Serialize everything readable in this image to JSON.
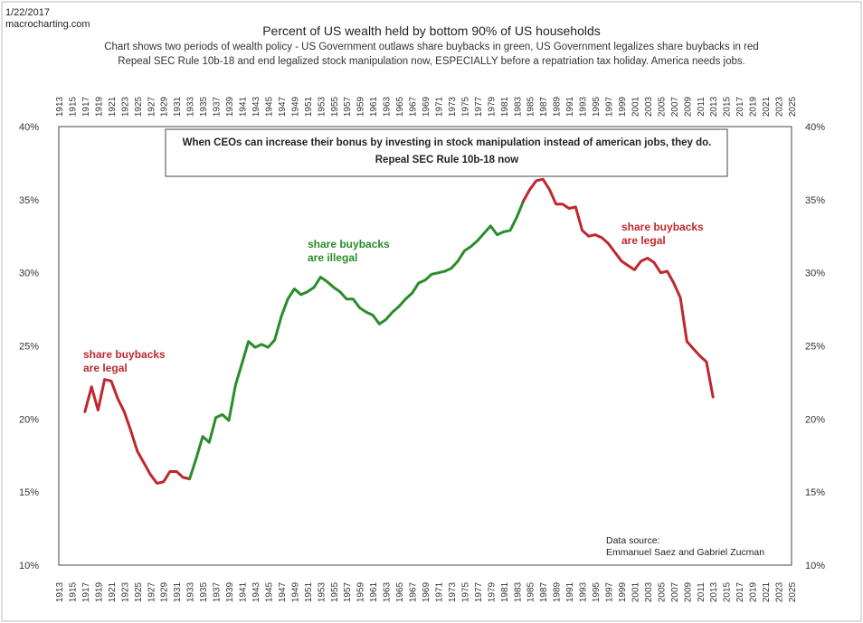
{
  "header": {
    "date": "1/22/2017",
    "site": "macrocharting.com",
    "title": "Percent of US wealth held by bottom 90% of US households",
    "subtitle_line1": "Chart shows two periods of wealth policy - US Government outlaws share buybacks in green,  US Government legalizes share buybacks in red",
    "subtitle_line2": "Repeal SEC Rule 10b-18 and end legalized stock manipulation now, ESPECIALLY before a repatriation tax holiday. America needs jobs."
  },
  "colors": {
    "legal": "#c0272d",
    "illegal": "#2a8c2a",
    "grid_text": "#333333",
    "frame": "#444444"
  },
  "chart_data": {
    "type": "line",
    "title": "Percent of US wealth held by bottom 90% of US households",
    "xlabel": "",
    "ylabel": "",
    "xlim": [
      1913,
      2025
    ],
    "ylim": [
      10,
      40
    ],
    "x_ticks": [
      "1913",
      "1915",
      "1917",
      "1919",
      "1921",
      "1923",
      "1925",
      "1927",
      "1929",
      "1931",
      "1933",
      "1935",
      "1937",
      "1939",
      "1941",
      "1943",
      "1945",
      "1947",
      "1949",
      "1951",
      "1953",
      "1955",
      "1957",
      "1959",
      "1961",
      "1963",
      "1965",
      "1967",
      "1969",
      "1971",
      "1973",
      "1975",
      "1977",
      "1979",
      "1981",
      "1983",
      "1985",
      "1987",
      "1989",
      "1991",
      "1993",
      "1995",
      "1997",
      "1999",
      "2001",
      "2003",
      "2005",
      "2007",
      "2009",
      "2011",
      "2013",
      "2015",
      "2017",
      "2019",
      "2021",
      "2023",
      "2025"
    ],
    "y_ticks": [
      "10%",
      "15%",
      "20%",
      "25%",
      "30%",
      "35%",
      "40%"
    ],
    "y_tick_values": [
      10,
      15,
      20,
      25,
      30,
      35,
      40
    ],
    "series": [
      {
        "segment": "legal",
        "x": [
          1917,
          1918,
          1919,
          1920,
          1921,
          1922,
          1923,
          1924,
          1925,
          1926,
          1927,
          1928,
          1929,
          1930,
          1931,
          1932,
          1933
        ],
        "y": [
          20.5,
          22.2,
          20.6,
          22.7,
          22.6,
          21.4,
          20.5,
          19.2,
          17.8,
          17.0,
          16.2,
          15.6,
          15.7,
          16.4,
          16.4,
          16.0,
          15.9
        ]
      },
      {
        "segment": "illegal",
        "x": [
          1933,
          1934,
          1935,
          1936,
          1937,
          1938,
          1939,
          1940,
          1941,
          1942,
          1943,
          1944,
          1945,
          1946,
          1947,
          1948,
          1949,
          1950,
          1951,
          1952,
          1953,
          1954,
          1955,
          1956,
          1957,
          1958,
          1959,
          1960,
          1961,
          1962,
          1963,
          1964,
          1965,
          1966,
          1967,
          1968,
          1969,
          1970,
          1971,
          1972,
          1973,
          1974,
          1975,
          1976,
          1977,
          1978,
          1979,
          1980,
          1981,
          1982,
          1983,
          1984
        ],
        "y": [
          15.9,
          17.3,
          18.8,
          18.4,
          20.1,
          20.3,
          19.9,
          22.3,
          23.8,
          25.3,
          24.9,
          25.1,
          24.9,
          25.4,
          27.0,
          28.2,
          28.9,
          28.5,
          28.7,
          29.0,
          29.7,
          29.4,
          29.0,
          28.7,
          28.2,
          28.2,
          27.6,
          27.3,
          27.1,
          26.5,
          26.8,
          27.3,
          27.7,
          28.2,
          28.6,
          29.3,
          29.5,
          29.9,
          30.0,
          30.1,
          30.3,
          30.8,
          31.5,
          31.8,
          32.2,
          32.7,
          33.2,
          32.6,
          32.8,
          32.9,
          33.8,
          34.9
        ]
      },
      {
        "segment": "legal",
        "x": [
          1984,
          1985,
          1986,
          1987,
          1988,
          1989,
          1990,
          1991,
          1992,
          1993,
          1994,
          1995,
          1996,
          1997,
          1998,
          1999,
          2000,
          2001,
          2002,
          2003,
          2004,
          2005,
          2006,
          2007,
          2008,
          2009,
          2010,
          2011,
          2012,
          2013
        ],
        "y": [
          34.9,
          35.7,
          36.3,
          36.4,
          35.7,
          34.7,
          34.7,
          34.4,
          34.5,
          32.9,
          32.5,
          32.6,
          32.4,
          32.0,
          31.4,
          30.8,
          30.5,
          30.2,
          30.8,
          31.0,
          30.7,
          30.0,
          30.1,
          29.3,
          28.3,
          25.3,
          24.8,
          24.3,
          23.9,
          21.5
        ]
      }
    ],
    "annotations": {
      "box_line1": "When CEOs can increase their bonus by investing in stock manipulation instead of american jobs, they do.",
      "box_line2": "Repeal SEC Rule 10b-18 now",
      "legal_left_1": "share buybacks",
      "legal_left_2": "are legal",
      "illegal_1": "share buybacks",
      "illegal_2": "are illegal",
      "legal_right_1": "share buybacks",
      "legal_right_2": "are legal",
      "source_1": "Data source:",
      "source_2": "Emmanuel Saez and Gabriel Zucman"
    },
    "grid": false
  }
}
